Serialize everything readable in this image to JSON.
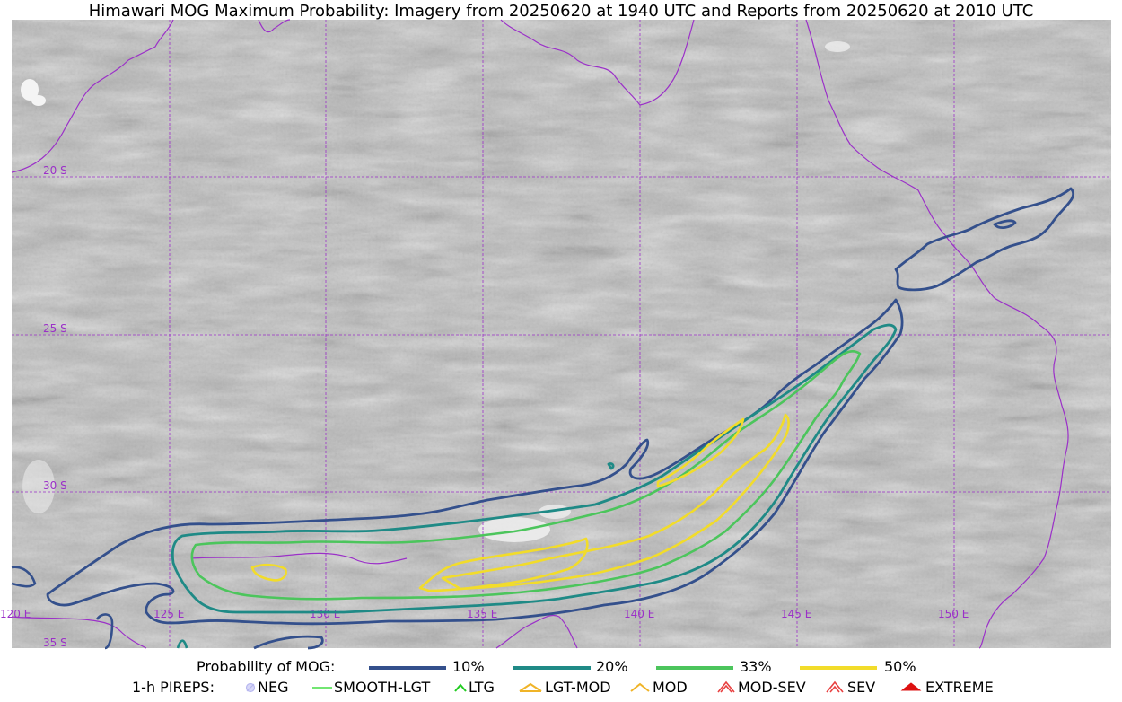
{
  "title": "Himawari MOG Maximum Probability: Imagery from 20250620 at 1940 UTC and Reports from 20250620 at 2010 UTC",
  "map": {
    "background_color": "#b8b8b8",
    "gridline_color": "#9b30c8",
    "coastline_color": "#9b30c8",
    "lat_labels": [
      "20 S",
      "25 S",
      "30 S",
      "35 S"
    ],
    "lon_labels": [
      "120 E",
      "125 E",
      "130 E",
      "135 E",
      "140 E",
      "145 E",
      "150 E"
    ]
  },
  "legend": {
    "probability_title": "Probability of MOG:",
    "contours": [
      {
        "label": "10%",
        "color": "#34508c"
      },
      {
        "label": "20%",
        "color": "#1f8a86"
      },
      {
        "label": "33%",
        "color": "#4cc55c"
      },
      {
        "label": "50%",
        "color": "#f2dc2a"
      }
    ],
    "pireps_title": "1-h PIREPS:",
    "pireps": [
      {
        "label": "NEG",
        "icon": "neg-icon",
        "color": "#b8b8f0"
      },
      {
        "label": "SMOOTH-LGT",
        "icon": "smooth-lgt-icon",
        "color": "#44dd44"
      },
      {
        "label": "LTG",
        "icon": "ltg-icon",
        "color": "#22cc22"
      },
      {
        "label": "LGT-MOD",
        "icon": "lgt-mod-icon",
        "color": "#f0b428"
      },
      {
        "label": "MOD",
        "icon": "mod-icon",
        "color": "#f0b428"
      },
      {
        "label": "MOD-SEV",
        "icon": "mod-sev-icon",
        "color": "#e84040"
      },
      {
        "label": "SEV",
        "icon": "sev-icon",
        "color": "#e84040"
      },
      {
        "label": "EXTREME",
        "icon": "extreme-icon",
        "color": "#dd1111"
      }
    ]
  }
}
